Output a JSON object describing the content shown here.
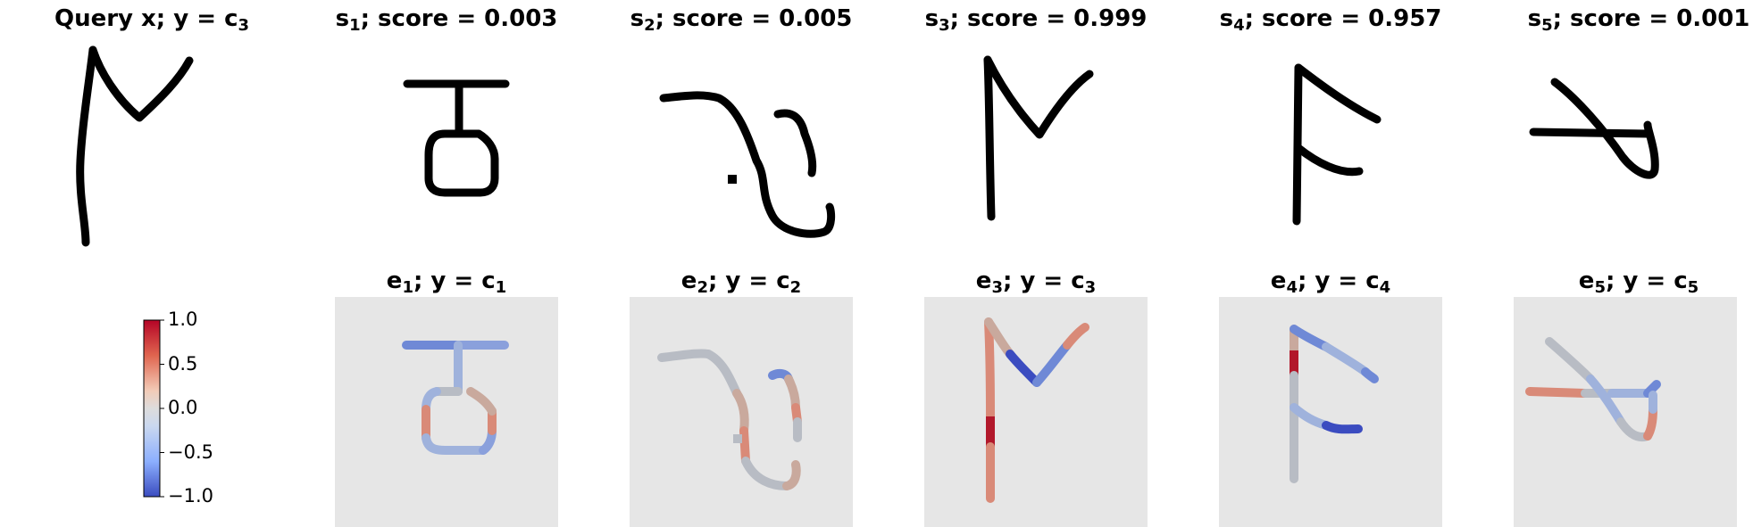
{
  "top_row": [
    {
      "prefix": "Query x; y = c",
      "sub": "3",
      "suffix": ""
    },
    {
      "prefix": "s",
      "sub": "1",
      "suffix": "; score = 0.003"
    },
    {
      "prefix": "s",
      "sub": "2",
      "suffix": "; score = 0.005"
    },
    {
      "prefix": "s",
      "sub": "3",
      "suffix": "; score = 0.999"
    },
    {
      "prefix": "s",
      "sub": "4",
      "suffix": "; score = 0.957"
    },
    {
      "prefix": "s",
      "sub": "5",
      "suffix": "; score = 0.001"
    }
  ],
  "bottom_row": [
    {
      "prefix": "e",
      "sub": "1",
      "mid": "; y = c",
      "sub2": "1"
    },
    {
      "prefix": "e",
      "sub": "2",
      "mid": "; y = c",
      "sub2": "2"
    },
    {
      "prefix": "e",
      "sub": "3",
      "mid": "; y = c",
      "sub2": "3"
    },
    {
      "prefix": "e",
      "sub": "4",
      "mid": "; y = c",
      "sub2": "4"
    },
    {
      "prefix": "e",
      "sub": "5",
      "mid": "; y = c",
      "sub2": "5"
    }
  ],
  "colorbar": {
    "ticks": [
      "1.0",
      "0.5",
      "0.0",
      "−0.5",
      "−1.0"
    ],
    "colormap": "coolwarm",
    "min": -1.0,
    "max": 1.0
  },
  "colors": {
    "red": "#b2182b",
    "light_red": "#d98a78",
    "tan": "#c9a99d",
    "grey": "#b8bcc4",
    "light_blue": "#9fb2dc",
    "blue": "#6f89d6",
    "dark_blue": "#3b4cc0",
    "background": "#e6e6e6"
  }
}
